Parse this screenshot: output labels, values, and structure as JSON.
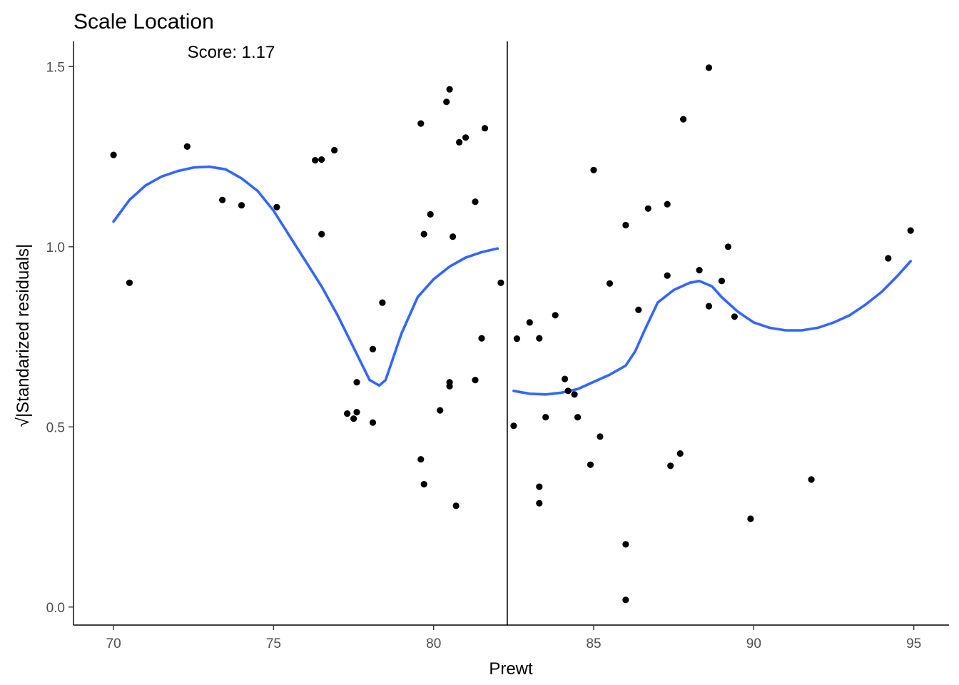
{
  "chart_data": {
    "type": "scatter",
    "title": "Scale Location",
    "annotation": "Score: 1.17",
    "xlabel": "Prewt",
    "ylabel": "√|Standarized residuals|",
    "xlim": [
      68.75,
      96.1
    ],
    "ylim": [
      -0.05,
      1.57
    ],
    "x_ticks": [
      70,
      75,
      80,
      85,
      90,
      95
    ],
    "y_ticks": [
      0.0,
      0.5,
      1.0,
      1.5
    ],
    "y_tick_labels": [
      "0.0",
      "0.5",
      "1.0",
      "1.5"
    ],
    "breakpoint_x": 82.3,
    "grid": false,
    "colors": {
      "points": "#000000",
      "smooth": "#3366ff",
      "vline": "#000000"
    },
    "points": [
      {
        "x": 70.0,
        "y": 1.255
      },
      {
        "x": 70.5,
        "y": 0.9
      },
      {
        "x": 72.3,
        "y": 1.278
      },
      {
        "x": 73.4,
        "y": 1.13
      },
      {
        "x": 74.0,
        "y": 1.115
      },
      {
        "x": 75.1,
        "y": 1.11
      },
      {
        "x": 76.3,
        "y": 1.24
      },
      {
        "x": 76.5,
        "y": 1.242
      },
      {
        "x": 76.5,
        "y": 1.035
      },
      {
        "x": 76.9,
        "y": 1.268
      },
      {
        "x": 77.3,
        "y": 0.537
      },
      {
        "x": 77.5,
        "y": 0.523
      },
      {
        "x": 77.6,
        "y": 0.624
      },
      {
        "x": 77.6,
        "y": 0.541
      },
      {
        "x": 78.1,
        "y": 0.716
      },
      {
        "x": 78.1,
        "y": 0.512
      },
      {
        "x": 78.4,
        "y": 0.845
      },
      {
        "x": 79.6,
        "y": 1.342
      },
      {
        "x": 79.6,
        "y": 0.41
      },
      {
        "x": 79.7,
        "y": 1.035
      },
      {
        "x": 79.7,
        "y": 0.341
      },
      {
        "x": 79.9,
        "y": 1.09
      },
      {
        "x": 80.2,
        "y": 0.546
      },
      {
        "x": 80.4,
        "y": 1.402
      },
      {
        "x": 80.5,
        "y": 1.437
      },
      {
        "x": 80.5,
        "y": 0.624
      },
      {
        "x": 80.5,
        "y": 0.613
      },
      {
        "x": 80.6,
        "y": 1.028
      },
      {
        "x": 80.7,
        "y": 0.281
      },
      {
        "x": 80.8,
        "y": 1.29
      },
      {
        "x": 81.0,
        "y": 1.303
      },
      {
        "x": 81.3,
        "y": 1.125
      },
      {
        "x": 81.3,
        "y": 0.63
      },
      {
        "x": 81.5,
        "y": 0.746
      },
      {
        "x": 81.6,
        "y": 1.329
      },
      {
        "x": 82.1,
        "y": 0.9
      },
      {
        "x": 82.5,
        "y": 0.503
      },
      {
        "x": 82.6,
        "y": 0.745
      },
      {
        "x": 83.0,
        "y": 0.79
      },
      {
        "x": 83.3,
        "y": 0.746
      },
      {
        "x": 83.3,
        "y": 0.334
      },
      {
        "x": 83.3,
        "y": 0.288
      },
      {
        "x": 83.5,
        "y": 0.527
      },
      {
        "x": 83.8,
        "y": 0.81
      },
      {
        "x": 84.1,
        "y": 0.633
      },
      {
        "x": 84.2,
        "y": 0.6
      },
      {
        "x": 84.4,
        "y": 0.59
      },
      {
        "x": 84.5,
        "y": 0.527
      },
      {
        "x": 84.9,
        "y": 0.395
      },
      {
        "x": 85.0,
        "y": 1.213
      },
      {
        "x": 85.2,
        "y": 0.473
      },
      {
        "x": 85.5,
        "y": 0.898
      },
      {
        "x": 86.0,
        "y": 1.06
      },
      {
        "x": 86.0,
        "y": 0.174
      },
      {
        "x": 86.0,
        "y": 0.02
      },
      {
        "x": 86.4,
        "y": 0.825
      },
      {
        "x": 86.7,
        "y": 1.106
      },
      {
        "x": 87.3,
        "y": 1.118
      },
      {
        "x": 87.3,
        "y": 0.92
      },
      {
        "x": 87.4,
        "y": 0.392
      },
      {
        "x": 87.7,
        "y": 0.426
      },
      {
        "x": 87.8,
        "y": 1.354
      },
      {
        "x": 88.3,
        "y": 0.935
      },
      {
        "x": 88.6,
        "y": 1.497
      },
      {
        "x": 88.6,
        "y": 0.835
      },
      {
        "x": 89.0,
        "y": 0.905
      },
      {
        "x": 89.2,
        "y": 1.0
      },
      {
        "x": 89.4,
        "y": 0.806
      },
      {
        "x": 89.9,
        "y": 0.245
      },
      {
        "x": 91.8,
        "y": 0.354
      },
      {
        "x": 94.2,
        "y": 0.968
      },
      {
        "x": 94.9,
        "y": 1.045
      }
    ],
    "smooth_segments": [
      {
        "x": [
          70.0,
          70.5,
          71.0,
          71.5,
          72.0,
          72.5,
          73.0,
          73.5,
          74.0,
          74.5,
          75.0,
          75.5,
          76.0,
          76.5,
          77.0,
          77.5,
          78.0,
          78.3,
          78.5,
          79.0,
          79.5,
          80.0,
          80.5,
          81.0,
          81.5,
          82.0
        ],
        "y": [
          1.07,
          1.13,
          1.17,
          1.195,
          1.21,
          1.22,
          1.222,
          1.215,
          1.19,
          1.155,
          1.1,
          1.03,
          0.96,
          0.89,
          0.81,
          0.72,
          0.63,
          0.615,
          0.63,
          0.76,
          0.86,
          0.91,
          0.945,
          0.97,
          0.985,
          0.995
        ]
      },
      {
        "x": [
          82.5,
          83.0,
          83.5,
          84.0,
          84.5,
          85.0,
          85.5,
          86.0,
          86.3,
          86.6,
          87.0,
          87.5,
          88.0,
          88.3,
          88.7,
          89.0,
          89.5,
          90.0,
          90.5,
          91.0,
          91.5,
          92.0,
          92.5,
          93.0,
          93.5,
          94.0,
          94.5,
          94.9
        ],
        "y": [
          0.6,
          0.592,
          0.59,
          0.595,
          0.605,
          0.625,
          0.645,
          0.67,
          0.71,
          0.77,
          0.845,
          0.88,
          0.9,
          0.905,
          0.89,
          0.86,
          0.82,
          0.79,
          0.775,
          0.768,
          0.768,
          0.775,
          0.79,
          0.81,
          0.84,
          0.875,
          0.92,
          0.96
        ]
      }
    ]
  }
}
